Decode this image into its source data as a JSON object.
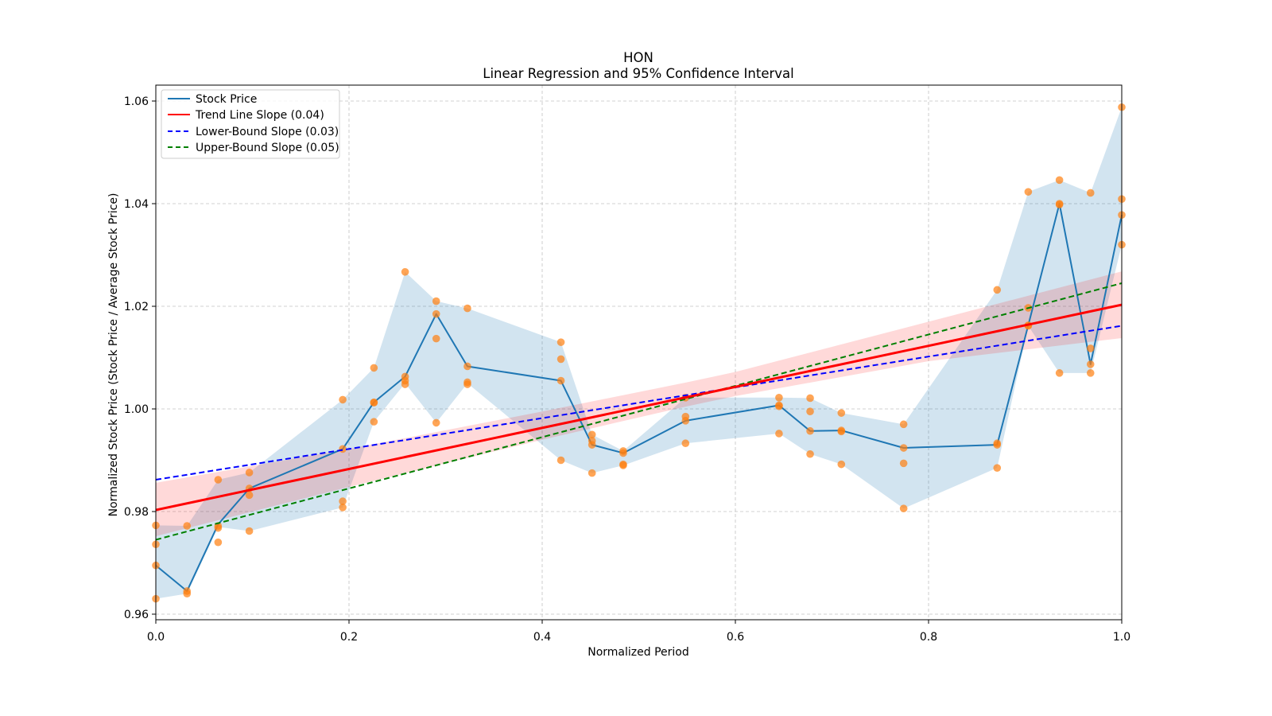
{
  "chart_data": {
    "type": "line",
    "title": "HON",
    "subtitle": "Linear Regression and 95% Confidence Interval",
    "xlabel": "Normalized Period",
    "ylabel": "Normalized Stock Price (Stock Price / Average Stock Price)",
    "xlim": [
      0.0,
      1.0
    ],
    "ylim": [
      0.958,
      1.063
    ],
    "grid": true,
    "legend_position": "top-left",
    "x_ticks": [
      "0.0",
      "0.2",
      "0.4",
      "0.6",
      "0.8",
      "1.0"
    ],
    "x_tick_values": [
      0.0,
      0.2,
      0.4,
      0.6,
      0.8,
      1.0
    ],
    "y_ticks": [
      "0.96",
      "0.98",
      "1.00",
      "1.02",
      "1.04",
      "1.06"
    ],
    "y_tick_values": [
      0.96,
      0.98,
      1.0,
      1.02,
      1.04,
      1.06
    ],
    "legend": [
      {
        "label": "Stock Price",
        "color": "#1f77b4",
        "style": "solid"
      },
      {
        "label": "Trend Line Slope (0.04)",
        "color": "#ff0000",
        "style": "solid"
      },
      {
        "label": "Lower-Bound Slope (0.03)",
        "color": "#0000ff",
        "style": "dashed"
      },
      {
        "label": "Upper-Bound Slope (0.05)",
        "color": "#008000",
        "style": "dashed"
      }
    ],
    "colors": {
      "stock": "#1f77b4",
      "range_fill": "#1f77b4",
      "scatter": "#ff7f0e",
      "trend": "#ff0000",
      "trend_ci": "#ff9999",
      "lower": "#0000ff",
      "upper": "#008000"
    },
    "stock_price": {
      "x": [
        0.0,
        0.0323,
        0.0645,
        0.0968,
        0.1935,
        0.2258,
        0.2581,
        0.2903,
        0.3226,
        0.4194,
        0.4516,
        0.4839,
        0.5484,
        0.6452,
        0.6774,
        0.7097,
        0.7742,
        0.871,
        0.9032,
        0.9355,
        0.9677,
        1.0
      ],
      "y": [
        0.9695,
        0.9645,
        0.9775,
        0.9845,
        0.9922,
        1.0013,
        1.0063,
        1.0185,
        1.0083,
        1.0055,
        0.993,
        0.9914,
        0.9977,
        1.0007,
        0.9957,
        0.9958,
        0.9924,
        0.993,
        1.0163,
        1.04,
        1.0087,
        1.0378
      ]
    },
    "range_band": {
      "x": [
        0.0,
        0.0323,
        0.0645,
        0.0968,
        0.1935,
        0.2258,
        0.2581,
        0.2903,
        0.3226,
        0.4194,
        0.4516,
        0.4839,
        0.5484,
        0.6452,
        0.6774,
        0.7097,
        0.7742,
        0.871,
        0.9032,
        0.9355,
        0.9677,
        1.0
      ],
      "low": [
        0.963,
        0.964,
        0.977,
        0.9762,
        0.9808,
        0.9975,
        1.005,
        0.9973,
        1.005,
        0.99,
        0.9875,
        0.989,
        0.9933,
        0.9952,
        0.9912,
        0.9892,
        0.9806,
        0.9885,
        1.0162,
        1.007,
        1.007,
        1.032
      ],
      "high": [
        0.9773,
        0.9772,
        0.9862,
        0.9876,
        1.0018,
        1.008,
        1.0267,
        1.021,
        1.0196,
        1.013,
        0.995,
        0.9918,
        1.0022,
        1.0022,
        1.0021,
        0.9992,
        0.997,
        1.0232,
        1.0423,
        1.0446,
        1.0421,
        1.0588
      ]
    },
    "scatter_points": [
      [
        0.0,
        0.9773
      ],
      [
        0.0,
        0.9736
      ],
      [
        0.0,
        0.9695
      ],
      [
        0.0,
        0.963
      ],
      [
        0.0323,
        0.9772
      ],
      [
        0.0323,
        0.9645
      ],
      [
        0.0323,
        0.964
      ],
      [
        0.0645,
        0.9862
      ],
      [
        0.0645,
        0.9772
      ],
      [
        0.0645,
        0.9768
      ],
      [
        0.0645,
        0.974
      ],
      [
        0.0968,
        0.9876
      ],
      [
        0.0968,
        0.9845
      ],
      [
        0.0968,
        0.9832
      ],
      [
        0.0968,
        0.9762
      ],
      [
        0.1935,
        1.0018
      ],
      [
        0.1935,
        0.9922
      ],
      [
        0.1935,
        0.982
      ],
      [
        0.1935,
        0.9808
      ],
      [
        0.2258,
        1.008
      ],
      [
        0.2258,
        1.0013
      ],
      [
        0.2258,
        1.0012
      ],
      [
        0.2258,
        0.9975
      ],
      [
        0.2581,
        1.0267
      ],
      [
        0.2581,
        1.0063
      ],
      [
        0.2581,
        1.0055
      ],
      [
        0.2581,
        1.0048
      ],
      [
        0.2903,
        1.021
      ],
      [
        0.2903,
        1.0185
      ],
      [
        0.2903,
        1.0137
      ],
      [
        0.2903,
        0.9973
      ],
      [
        0.3226,
        1.0196
      ],
      [
        0.3226,
        1.0083
      ],
      [
        0.3226,
        1.0052
      ],
      [
        0.3226,
        1.0048
      ],
      [
        0.4194,
        1.013
      ],
      [
        0.4194,
        1.0097
      ],
      [
        0.4194,
        1.0055
      ],
      [
        0.4194,
        0.99
      ],
      [
        0.4516,
        0.995
      ],
      [
        0.4516,
        0.9938
      ],
      [
        0.4516,
        0.993
      ],
      [
        0.4516,
        0.9875
      ],
      [
        0.4839,
        0.9918
      ],
      [
        0.4839,
        0.9914
      ],
      [
        0.4839,
        0.9892
      ],
      [
        0.4839,
        0.989
      ],
      [
        0.5484,
        1.0022
      ],
      [
        0.5484,
        0.9985
      ],
      [
        0.5484,
        0.9977
      ],
      [
        0.5484,
        0.9933
      ],
      [
        0.6452,
        1.0022
      ],
      [
        0.6452,
        1.0007
      ],
      [
        0.6452,
        1.0005
      ],
      [
        0.6452,
        0.9952
      ],
      [
        0.6774,
        1.0021
      ],
      [
        0.6774,
        0.9995
      ],
      [
        0.6774,
        0.9957
      ],
      [
        0.6774,
        0.9912
      ],
      [
        0.7097,
        0.9992
      ],
      [
        0.7097,
        0.9958
      ],
      [
        0.7097,
        0.9956
      ],
      [
        0.7097,
        0.9892
      ],
      [
        0.7742,
        0.997
      ],
      [
        0.7742,
        0.9924
      ],
      [
        0.7742,
        0.9894
      ],
      [
        0.7742,
        0.9806
      ],
      [
        0.871,
        1.0232
      ],
      [
        0.871,
        0.9933
      ],
      [
        0.871,
        0.993
      ],
      [
        0.871,
        0.9885
      ],
      [
        0.9032,
        1.0423
      ],
      [
        0.9032,
        1.0197
      ],
      [
        0.9032,
        1.0163
      ],
      [
        0.9032,
        1.0162
      ],
      [
        0.9355,
        1.0446
      ],
      [
        0.9355,
        1.04
      ],
      [
        0.9355,
        1.0398
      ],
      [
        0.9355,
        1.007
      ],
      [
        0.9677,
        1.0421
      ],
      [
        0.9677,
        1.0118
      ],
      [
        0.9677,
        1.0087
      ],
      [
        0.9677,
        1.007
      ],
      [
        1.0,
        1.0588
      ],
      [
        1.0,
        1.0409
      ],
      [
        1.0,
        1.0378
      ],
      [
        1.0,
        1.032
      ]
    ],
    "trend_line": {
      "x": [
        0.0,
        1.0
      ],
      "y": [
        0.9803,
        1.0203
      ]
    },
    "trend_ci": {
      "x": [
        0.0,
        0.2,
        0.4,
        0.55,
        0.6,
        0.8,
        1.0
      ],
      "low": [
        0.9752,
        0.9848,
        0.994,
        1.0005,
        1.0025,
        1.0093,
        1.0138
      ],
      "high": [
        0.9856,
        0.9922,
        0.9995,
        1.0052,
        1.0072,
        1.017,
        1.0268
      ]
    },
    "lower_bound_line": {
      "x": [
        0.0,
        1.0
      ],
      "y": [
        0.9862,
        1.0162
      ]
    },
    "upper_bound_line": {
      "x": [
        0.0,
        1.0
      ],
      "y": [
        0.9745,
        1.0245
      ]
    }
  }
}
